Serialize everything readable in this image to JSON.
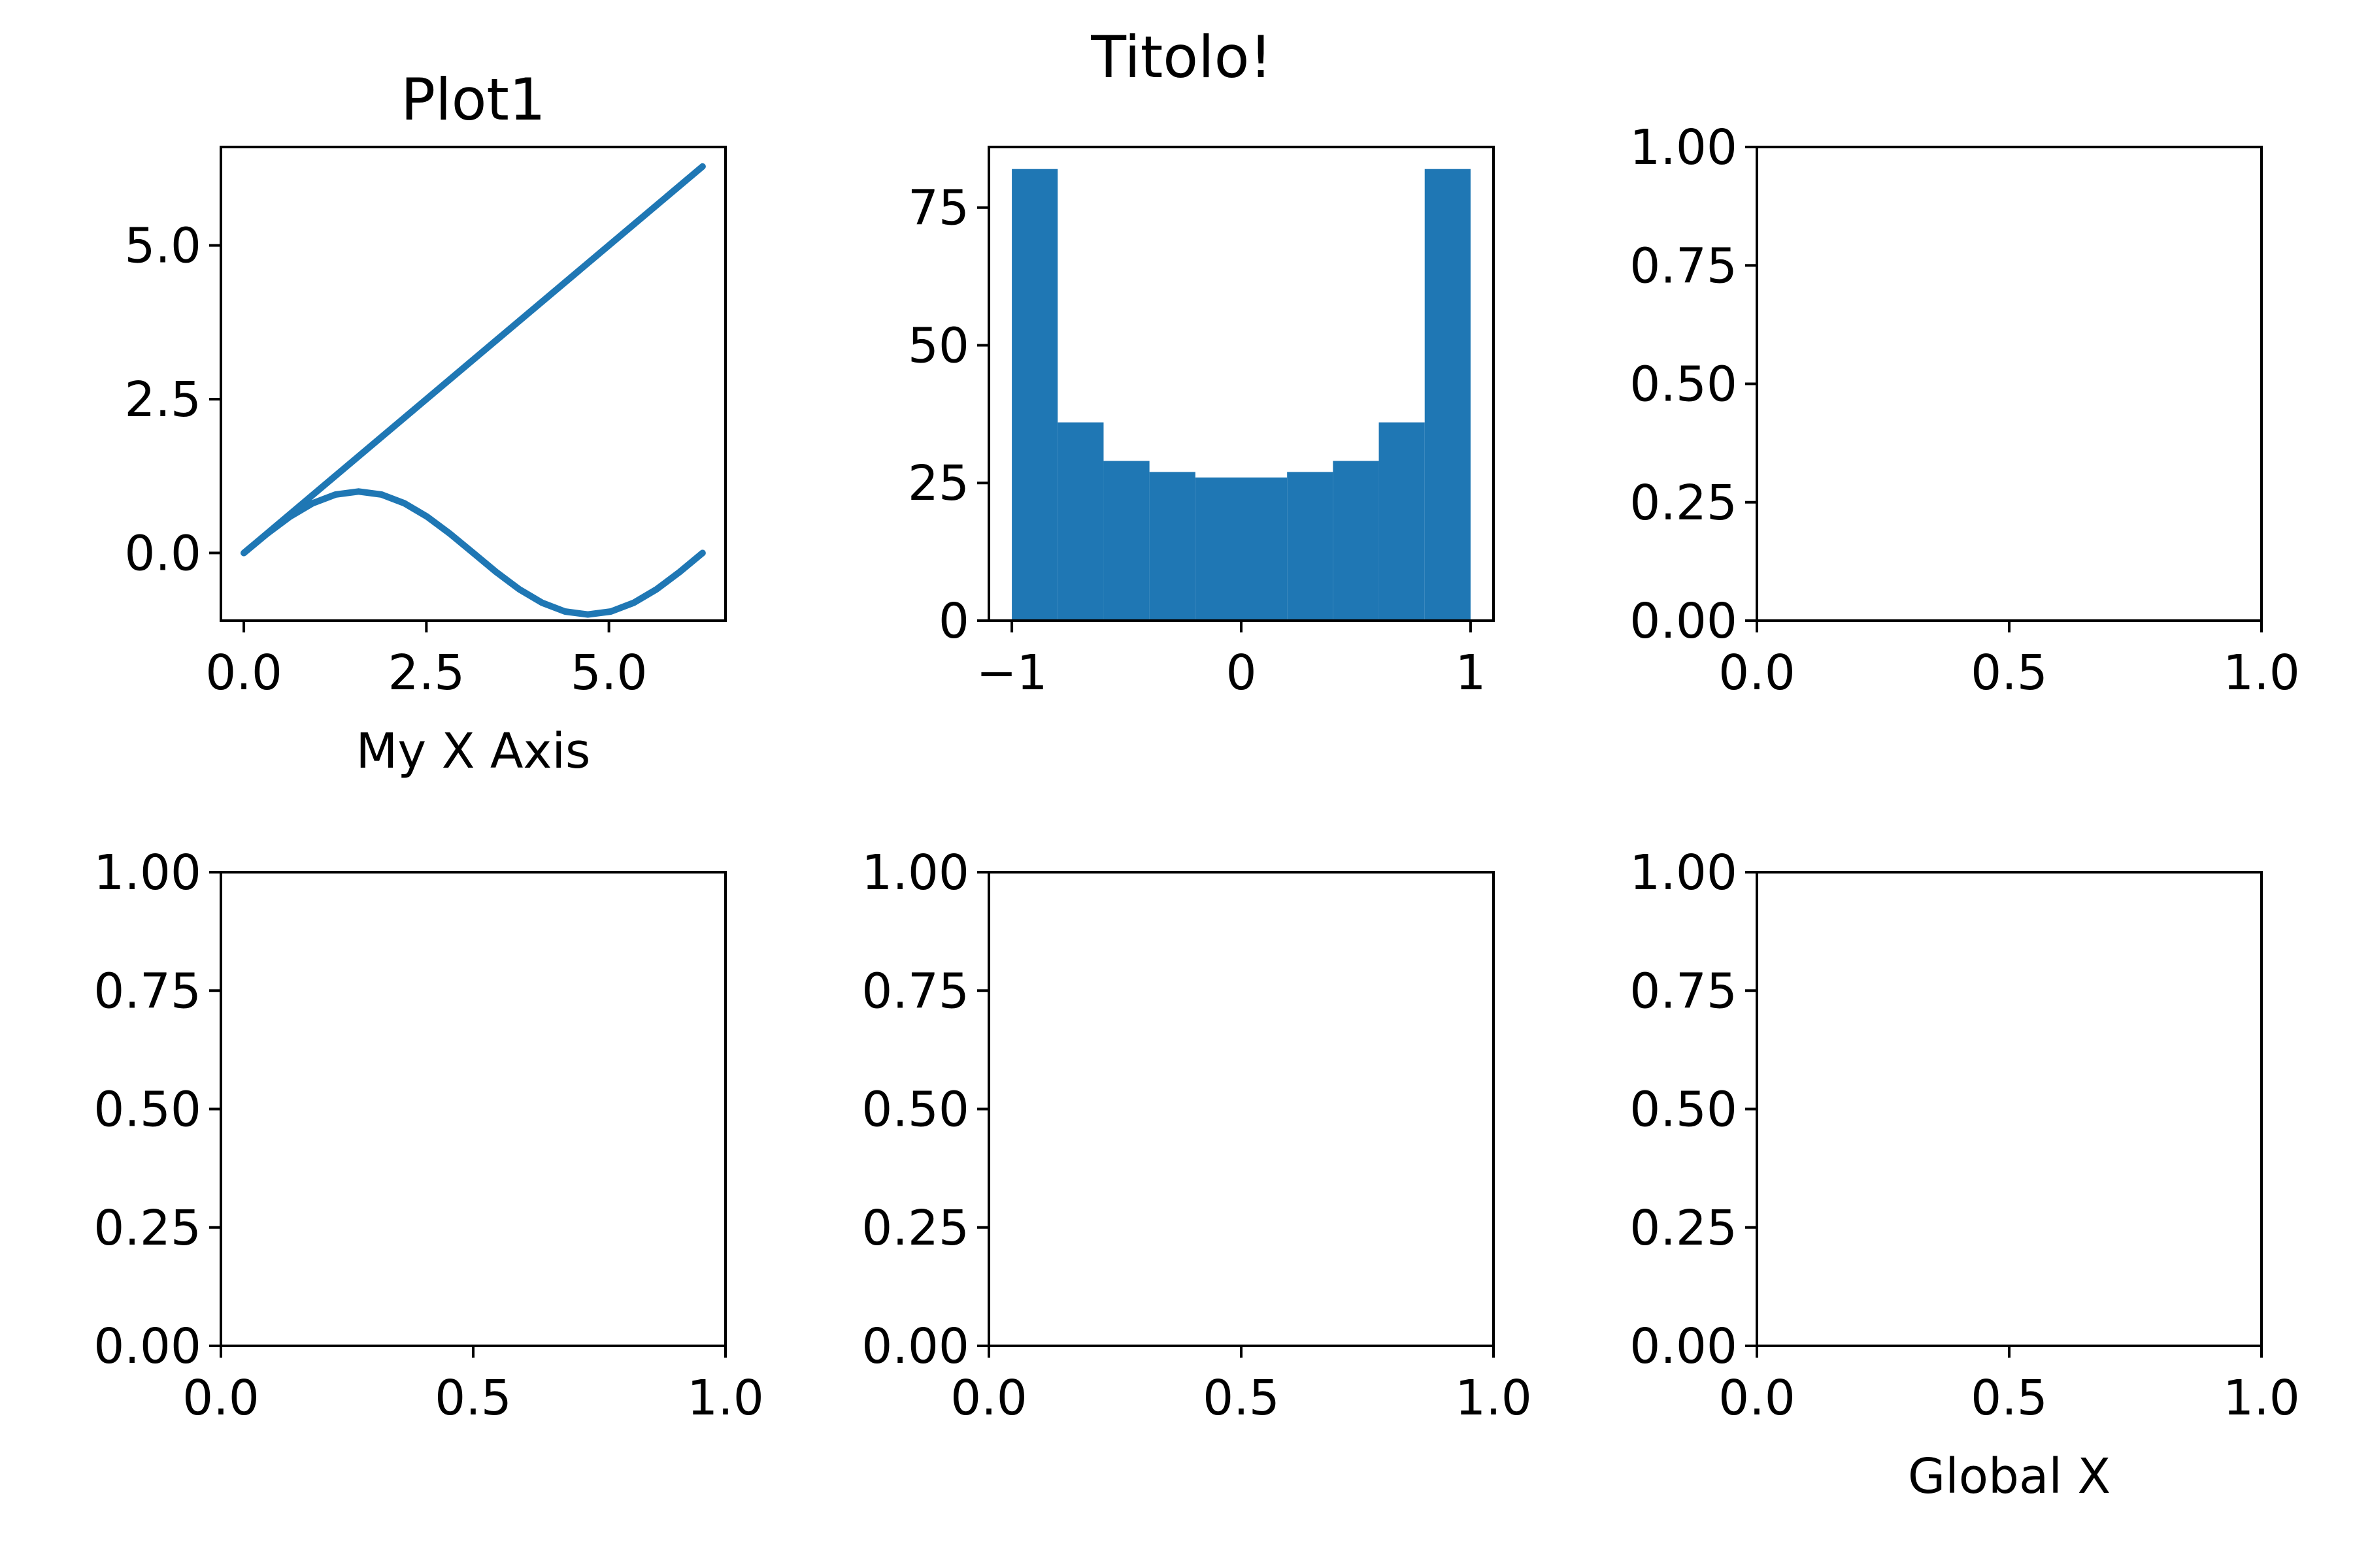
{
  "figure": {
    "suptitle": "Titolo!",
    "colors": {
      "series": "#1f77b4",
      "axes": "#000000",
      "background": "#ffffff"
    }
  },
  "chart_data": [
    {
      "type": "line",
      "title": "Plot1",
      "xlabel": "My X Axis",
      "ylabel": "",
      "xlim": [
        -0.314,
        6.597
      ],
      "ylim": [
        -1.1,
        6.6
      ],
      "xticks": [
        0.0,
        2.5,
        5.0
      ],
      "xtick_labels": [
        "0.0",
        "2.5",
        "5.0"
      ],
      "yticks": [
        0.0,
        2.5,
        5.0
      ],
      "ytick_labels": [
        "0.0",
        "2.5",
        "5.0"
      ],
      "grid": false,
      "series": [
        {
          "x": [
            0,
            6.283
          ],
          "y": [
            0,
            6.283
          ]
        },
        {
          "x": [
            0,
            0.314,
            0.628,
            0.942,
            1.257,
            1.571,
            1.885,
            2.199,
            2.513,
            2.827,
            3.142,
            3.456,
            3.77,
            4.084,
            4.398,
            4.712,
            5.027,
            5.341,
            5.655,
            5.969,
            6.283
          ],
          "y": [
            0,
            0.309,
            0.588,
            0.809,
            0.951,
            1.0,
            0.951,
            0.809,
            0.588,
            0.309,
            0,
            -0.309,
            -0.588,
            -0.809,
            -0.951,
            -1.0,
            -0.951,
            -0.809,
            -0.588,
            -0.309,
            0
          ]
        }
      ]
    },
    {
      "type": "bar",
      "title": "",
      "xlabel": "",
      "ylabel": "",
      "xlim": [
        -1.1,
        1.1
      ],
      "ylim": [
        0,
        86
      ],
      "xticks": [
        -1,
        0,
        1
      ],
      "xtick_labels": [
        "−1",
        "0",
        "1"
      ],
      "yticks": [
        0,
        25,
        50,
        75
      ],
      "ytick_labels": [
        "0",
        "25",
        "50",
        "75"
      ],
      "grid": false,
      "bin_edges": [
        -1.0,
        -0.8,
        -0.6,
        -0.4,
        -0.2,
        0.0,
        0.2,
        0.4,
        0.6,
        0.8,
        1.0
      ],
      "values": [
        82,
        36,
        29,
        27,
        26,
        26,
        27,
        29,
        36,
        82
      ]
    },
    {
      "type": "line",
      "title": "",
      "xlabel": "",
      "ylabel": "",
      "xlim": [
        0,
        1
      ],
      "ylim": [
        0,
        1
      ],
      "xticks": [
        0.0,
        0.5,
        1.0
      ],
      "xtick_labels": [
        "0.0",
        "0.5",
        "1.0"
      ],
      "yticks": [
        0.0,
        0.25,
        0.5,
        0.75,
        1.0
      ],
      "ytick_labels": [
        "0.00",
        "0.25",
        "0.50",
        "0.75",
        "1.00"
      ],
      "grid": false,
      "series": []
    },
    {
      "type": "line",
      "title": "",
      "xlabel": "",
      "ylabel": "",
      "xlim": [
        0,
        1
      ],
      "ylim": [
        0,
        1
      ],
      "xticks": [
        0.0,
        0.5,
        1.0
      ],
      "xtick_labels": [
        "0.0",
        "0.5",
        "1.0"
      ],
      "yticks": [
        0.0,
        0.25,
        0.5,
        0.75,
        1.0
      ],
      "ytick_labels": [
        "0.00",
        "0.25",
        "0.50",
        "0.75",
        "1.00"
      ],
      "grid": false,
      "series": []
    },
    {
      "type": "line",
      "title": "",
      "xlabel": "",
      "ylabel": "",
      "xlim": [
        0,
        1
      ],
      "ylim": [
        0,
        1
      ],
      "xticks": [
        0.0,
        0.5,
        1.0
      ],
      "xtick_labels": [
        "0.0",
        "0.5",
        "1.0"
      ],
      "yticks": [
        0.0,
        0.25,
        0.5,
        0.75,
        1.0
      ],
      "ytick_labels": [
        "0.00",
        "0.25",
        "0.50",
        "0.75",
        "1.00"
      ],
      "grid": false,
      "series": []
    },
    {
      "type": "line",
      "title": "",
      "xlabel": "Global X",
      "ylabel": "",
      "xlim": [
        0,
        1
      ],
      "ylim": [
        0,
        1
      ],
      "xticks": [
        0.0,
        0.5,
        1.0
      ],
      "xtick_labels": [
        "0.0",
        "0.5",
        "1.0"
      ],
      "yticks": [
        0.0,
        0.25,
        0.5,
        0.75,
        1.0
      ],
      "ytick_labels": [
        "0.00",
        "0.25",
        "0.50",
        "0.75",
        "1.00"
      ],
      "grid": false,
      "series": []
    }
  ]
}
